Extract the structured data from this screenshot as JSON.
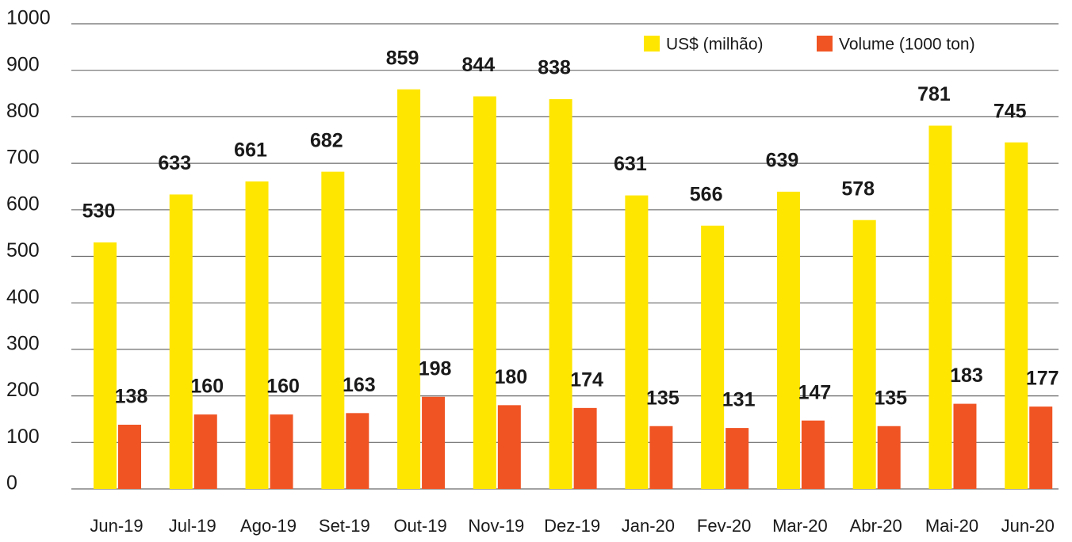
{
  "chart_data": {
    "type": "bar",
    "categories": [
      "Jun-19",
      "Jul-19",
      "Ago-19",
      "Set-19",
      "Out-19",
      "Nov-19",
      "Dez-19",
      "Jan-20",
      "Fev-20",
      "Mar-20",
      "Abr-20",
      "Mai-20",
      "Jun-20"
    ],
    "series": [
      {
        "name": "US$ (milhão)",
        "color": "#ffe600",
        "values": [
          530,
          633,
          661,
          682,
          859,
          844,
          838,
          631,
          566,
          639,
          578,
          781,
          745
        ]
      },
      {
        "name": "Volume (1000 ton)",
        "color": "#f05423",
        "values": [
          138,
          160,
          160,
          163,
          198,
          180,
          174,
          135,
          131,
          147,
          135,
          183,
          177
        ]
      }
    ],
    "ylim": [
      0,
      1000
    ],
    "yticks": [
      0,
      100,
      200,
      300,
      400,
      500,
      600,
      700,
      800,
      900,
      1000
    ],
    "grid": true,
    "legend": "top-right"
  }
}
